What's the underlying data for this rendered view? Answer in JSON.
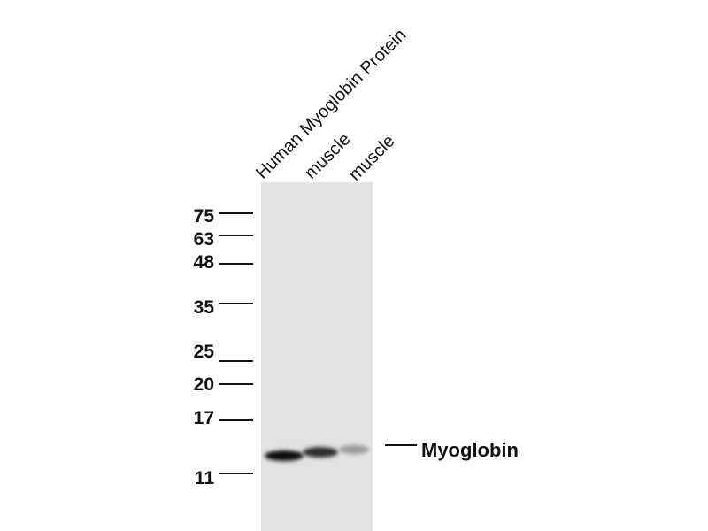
{
  "lanes": [
    "Human Myoglobin Protein",
    "muscle",
    "muscle"
  ],
  "markers": [
    "75",
    "63",
    "48",
    "35",
    "25",
    "20",
    "17",
    "11"
  ],
  "target": {
    "label": "Myoglobin"
  },
  "bands": [
    {
      "lane": "Human Myoglobin Protein",
      "intensity": 0.95
    },
    {
      "lane": "muscle",
      "intensity": 0.75
    },
    {
      "lane": "muscle",
      "intensity": 0.4
    }
  ],
  "colors": {
    "membrane": "#e3e3e3",
    "band": "#111111"
  }
}
